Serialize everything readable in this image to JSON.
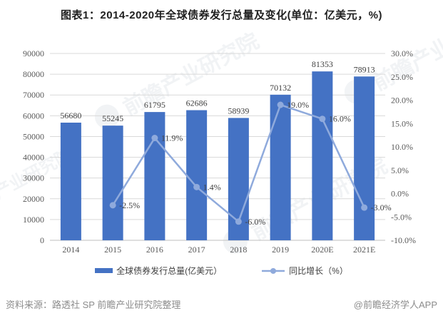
{
  "title": "图表1：2014-2020年全球债券发行总量及变化(单位：亿美元，%)",
  "legend": {
    "bar_label": "全球债券发行总量(亿美元）",
    "line_label": "同比增长（%）"
  },
  "footer": {
    "source": "资料来源：路透社 SP 前瞻产业研究院整理",
    "brand": "@前瞻经济学人APP"
  },
  "watermark_text": "前瞻产业研究院",
  "colors": {
    "bar": "#4472C4",
    "line": "#8FAADC",
    "grid": "#D9D9D9",
    "baseline": "#BFBFBF",
    "axis_text": "#595959",
    "data_label_text": "#404040"
  },
  "chart_data": {
    "type": "bar",
    "subtype": "combo bar+line with dual axes",
    "title": "图表1：2014-2020年全球债券发行总量及变化(单位：亿美元，%)",
    "categories": [
      "2014",
      "2015",
      "2016",
      "2017",
      "2018",
      "2019",
      "2020E",
      "2021E"
    ],
    "series": [
      {
        "name": "全球债券发行总量(亿美元）",
        "type": "bar",
        "axis": "left",
        "values": [
          56680,
          55245,
          61795,
          62686,
          58939,
          70132,
          81353,
          78913
        ],
        "data_labels": [
          "56680",
          "55245",
          "61795",
          "62686",
          "58939",
          "70132",
          "81353",
          "78913"
        ]
      },
      {
        "name": "同比增长（%）",
        "type": "line",
        "axis": "right",
        "values": [
          null,
          -2.5,
          11.9,
          1.4,
          -6.0,
          19.0,
          16.0,
          -3.0
        ],
        "data_labels": [
          null,
          "-2.5%",
          "11.9%",
          "1.4%",
          "-6.0%",
          "19.0%",
          "16.0%",
          "-3.0%"
        ]
      }
    ],
    "left_axis": {
      "min": 0,
      "max": 90000,
      "step": 10000,
      "ticks": [
        "0",
        "10000",
        "20000",
        "30000",
        "40000",
        "50000",
        "60000",
        "70000",
        "80000",
        "90000"
      ]
    },
    "right_axis": {
      "min": -10,
      "max": 30,
      "step": 5,
      "ticks": [
        "-10.0%",
        "-5.0%",
        "0.0%",
        "5.0%",
        "10.0%",
        "15.0%",
        "20.0%",
        "25.0%",
        "30.0%"
      ]
    },
    "grid": true,
    "legend_position": "bottom"
  }
}
